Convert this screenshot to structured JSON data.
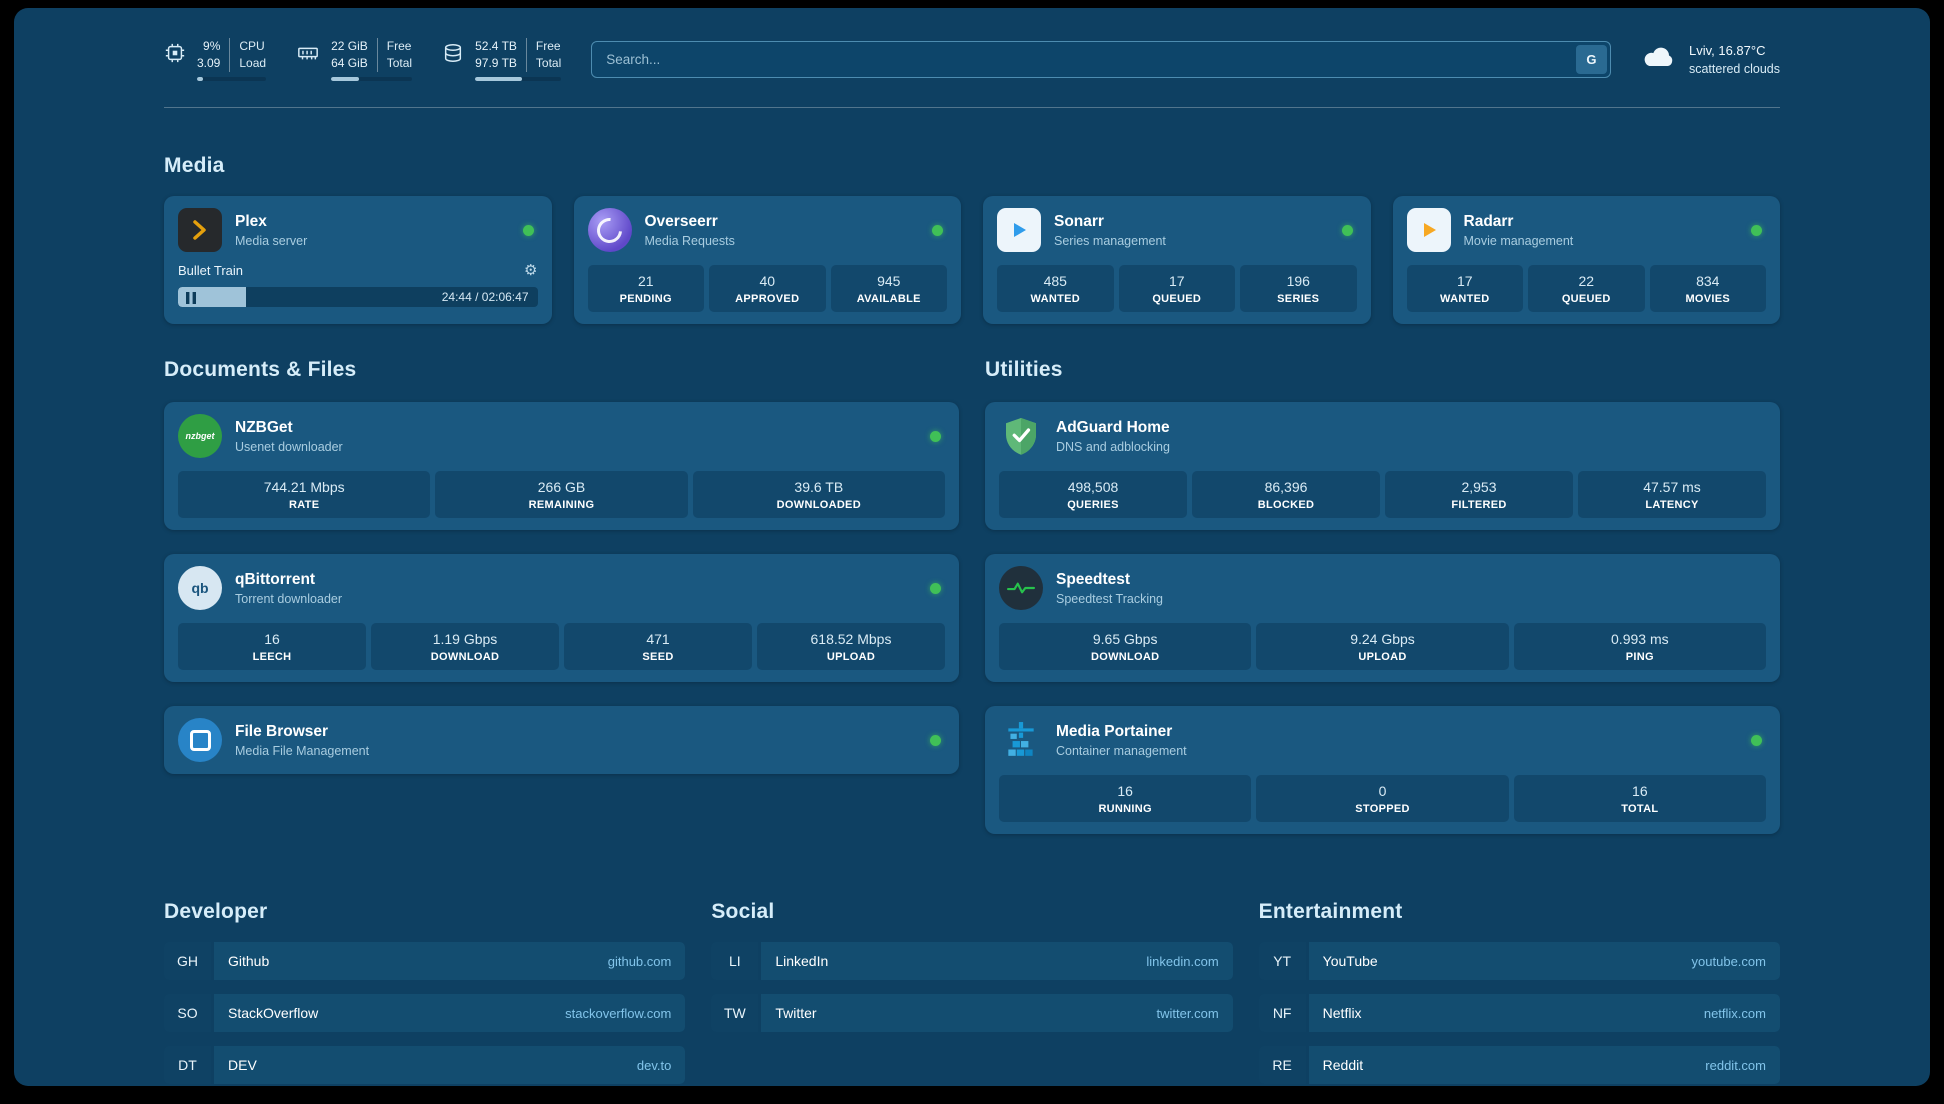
{
  "topbar": {
    "cpu": {
      "value1": "9%",
      "label1": "CPU",
      "value2": "3.09",
      "label2": "Load",
      "bar_percent": 9
    },
    "ram": {
      "value1": "22 GiB",
      "label1": "Free",
      "value2": "64 GiB",
      "label2": "Total",
      "bar_percent": 35
    },
    "disk": {
      "value1": "52.4 TB",
      "label1": "Free",
      "value2": "97.9 TB",
      "label2": "Total",
      "bar_percent": 54
    },
    "search": {
      "placeholder": "Search...",
      "engine_label": "G"
    },
    "weather": {
      "location": "Lviv, 16.87°C",
      "condition": "scattered clouds"
    }
  },
  "sections": {
    "media": {
      "title": "Media",
      "apps": [
        {
          "name": "Plex",
          "subtitle": "Media server",
          "status": "online",
          "player": {
            "track": "Bullet Train",
            "time": "24:44 / 02:06:47",
            "progress_percent": 19
          }
        },
        {
          "name": "Overseerr",
          "subtitle": "Media Requests",
          "status": "online",
          "stats": [
            {
              "value": "21",
              "label": "PENDING"
            },
            {
              "value": "40",
              "label": "APPROVED"
            },
            {
              "value": "945",
              "label": "AVAILABLE"
            }
          ]
        },
        {
          "name": "Sonarr",
          "subtitle": "Series management",
          "status": "online",
          "stats": [
            {
              "value": "485",
              "label": "WANTED"
            },
            {
              "value": "17",
              "label": "QUEUED"
            },
            {
              "value": "196",
              "label": "SERIES"
            }
          ]
        },
        {
          "name": "Radarr",
          "subtitle": "Movie management",
          "status": "online",
          "stats": [
            {
              "value": "17",
              "label": "WANTED"
            },
            {
              "value": "22",
              "label": "QUEUED"
            },
            {
              "value": "834",
              "label": "MOVIES"
            }
          ]
        }
      ]
    },
    "documents": {
      "title": "Documents & Files",
      "apps": [
        {
          "name": "NZBGet",
          "subtitle": "Usenet downloader",
          "status": "online",
          "stats": [
            {
              "value": "744.21 Mbps",
              "label": "RATE"
            },
            {
              "value": "266 GB",
              "label": "REMAINING"
            },
            {
              "value": "39.6 TB",
              "label": "DOWNLOADED"
            }
          ]
        },
        {
          "name": "qBittorrent",
          "subtitle": "Torrent downloader",
          "status": "online",
          "stats": [
            {
              "value": "16",
              "label": "LEECH"
            },
            {
              "value": "1.19 Gbps",
              "label": "DOWNLOAD"
            },
            {
              "value": "471",
              "label": "SEED"
            },
            {
              "value": "618.52 Mbps",
              "label": "UPLOAD"
            }
          ]
        },
        {
          "name": "File Browser",
          "subtitle": "Media File Management",
          "status": "online"
        }
      ]
    },
    "utilities": {
      "title": "Utilities",
      "apps": [
        {
          "name": "AdGuard Home",
          "subtitle": "DNS and adblocking",
          "stats": [
            {
              "value": "498,508",
              "label": "QUERIES"
            },
            {
              "value": "86,396",
              "label": "BLOCKED"
            },
            {
              "value": "2,953",
              "label": "FILTERED"
            },
            {
              "value": "47.57 ms",
              "label": "LATENCY"
            }
          ]
        },
        {
          "name": "Speedtest",
          "subtitle": "Speedtest Tracking",
          "stats": [
            {
              "value": "9.65 Gbps",
              "label": "DOWNLOAD"
            },
            {
              "value": "9.24 Gbps",
              "label": "UPLOAD"
            },
            {
              "value": "0.993 ms",
              "label": "PING"
            }
          ]
        },
        {
          "name": "Media Portainer",
          "subtitle": "Container management",
          "status": "online",
          "stats": [
            {
              "value": "16",
              "label": "RUNNING"
            },
            {
              "value": "0",
              "label": "STOPPED"
            },
            {
              "value": "16",
              "label": "TOTAL"
            }
          ]
        }
      ]
    },
    "bookmarks": [
      {
        "title": "Developer",
        "links": [
          {
            "abbr": "GH",
            "name": "Github",
            "domain": "github.com"
          },
          {
            "abbr": "SO",
            "name": "StackOverflow",
            "domain": "stackoverflow.com"
          },
          {
            "abbr": "DT",
            "name": "DEV",
            "domain": "dev.to"
          }
        ]
      },
      {
        "title": "Social",
        "links": [
          {
            "abbr": "LI",
            "name": "LinkedIn",
            "domain": "linkedin.com"
          },
          {
            "abbr": "TW",
            "name": "Twitter",
            "domain": "twitter.com"
          }
        ]
      },
      {
        "title": "Entertainment",
        "links": [
          {
            "abbr": "YT",
            "name": "YouTube",
            "domain": "youtube.com"
          },
          {
            "abbr": "NF",
            "name": "Netflix",
            "domain": "netflix.com"
          },
          {
            "abbr": "RE",
            "name": "Reddit",
            "domain": "reddit.com"
          }
        ]
      }
    ]
  },
  "colors": {
    "background": "#0e4062",
    "card": "#1a5880",
    "stat_box": "#12486c",
    "status_online": "#40c057",
    "link": "#82c4ea",
    "plex_accent": "#e5a00d",
    "sonarr_accent": "#2f9ceb",
    "radarr_accent": "#f7a823",
    "overseerr_accent": "#5f48c9",
    "nzbget_accent": "#2f9e44",
    "adguard_accent": "#5fb878",
    "speedtest_accent": "#27c24c",
    "portainer_accent": "#1899d6"
  }
}
